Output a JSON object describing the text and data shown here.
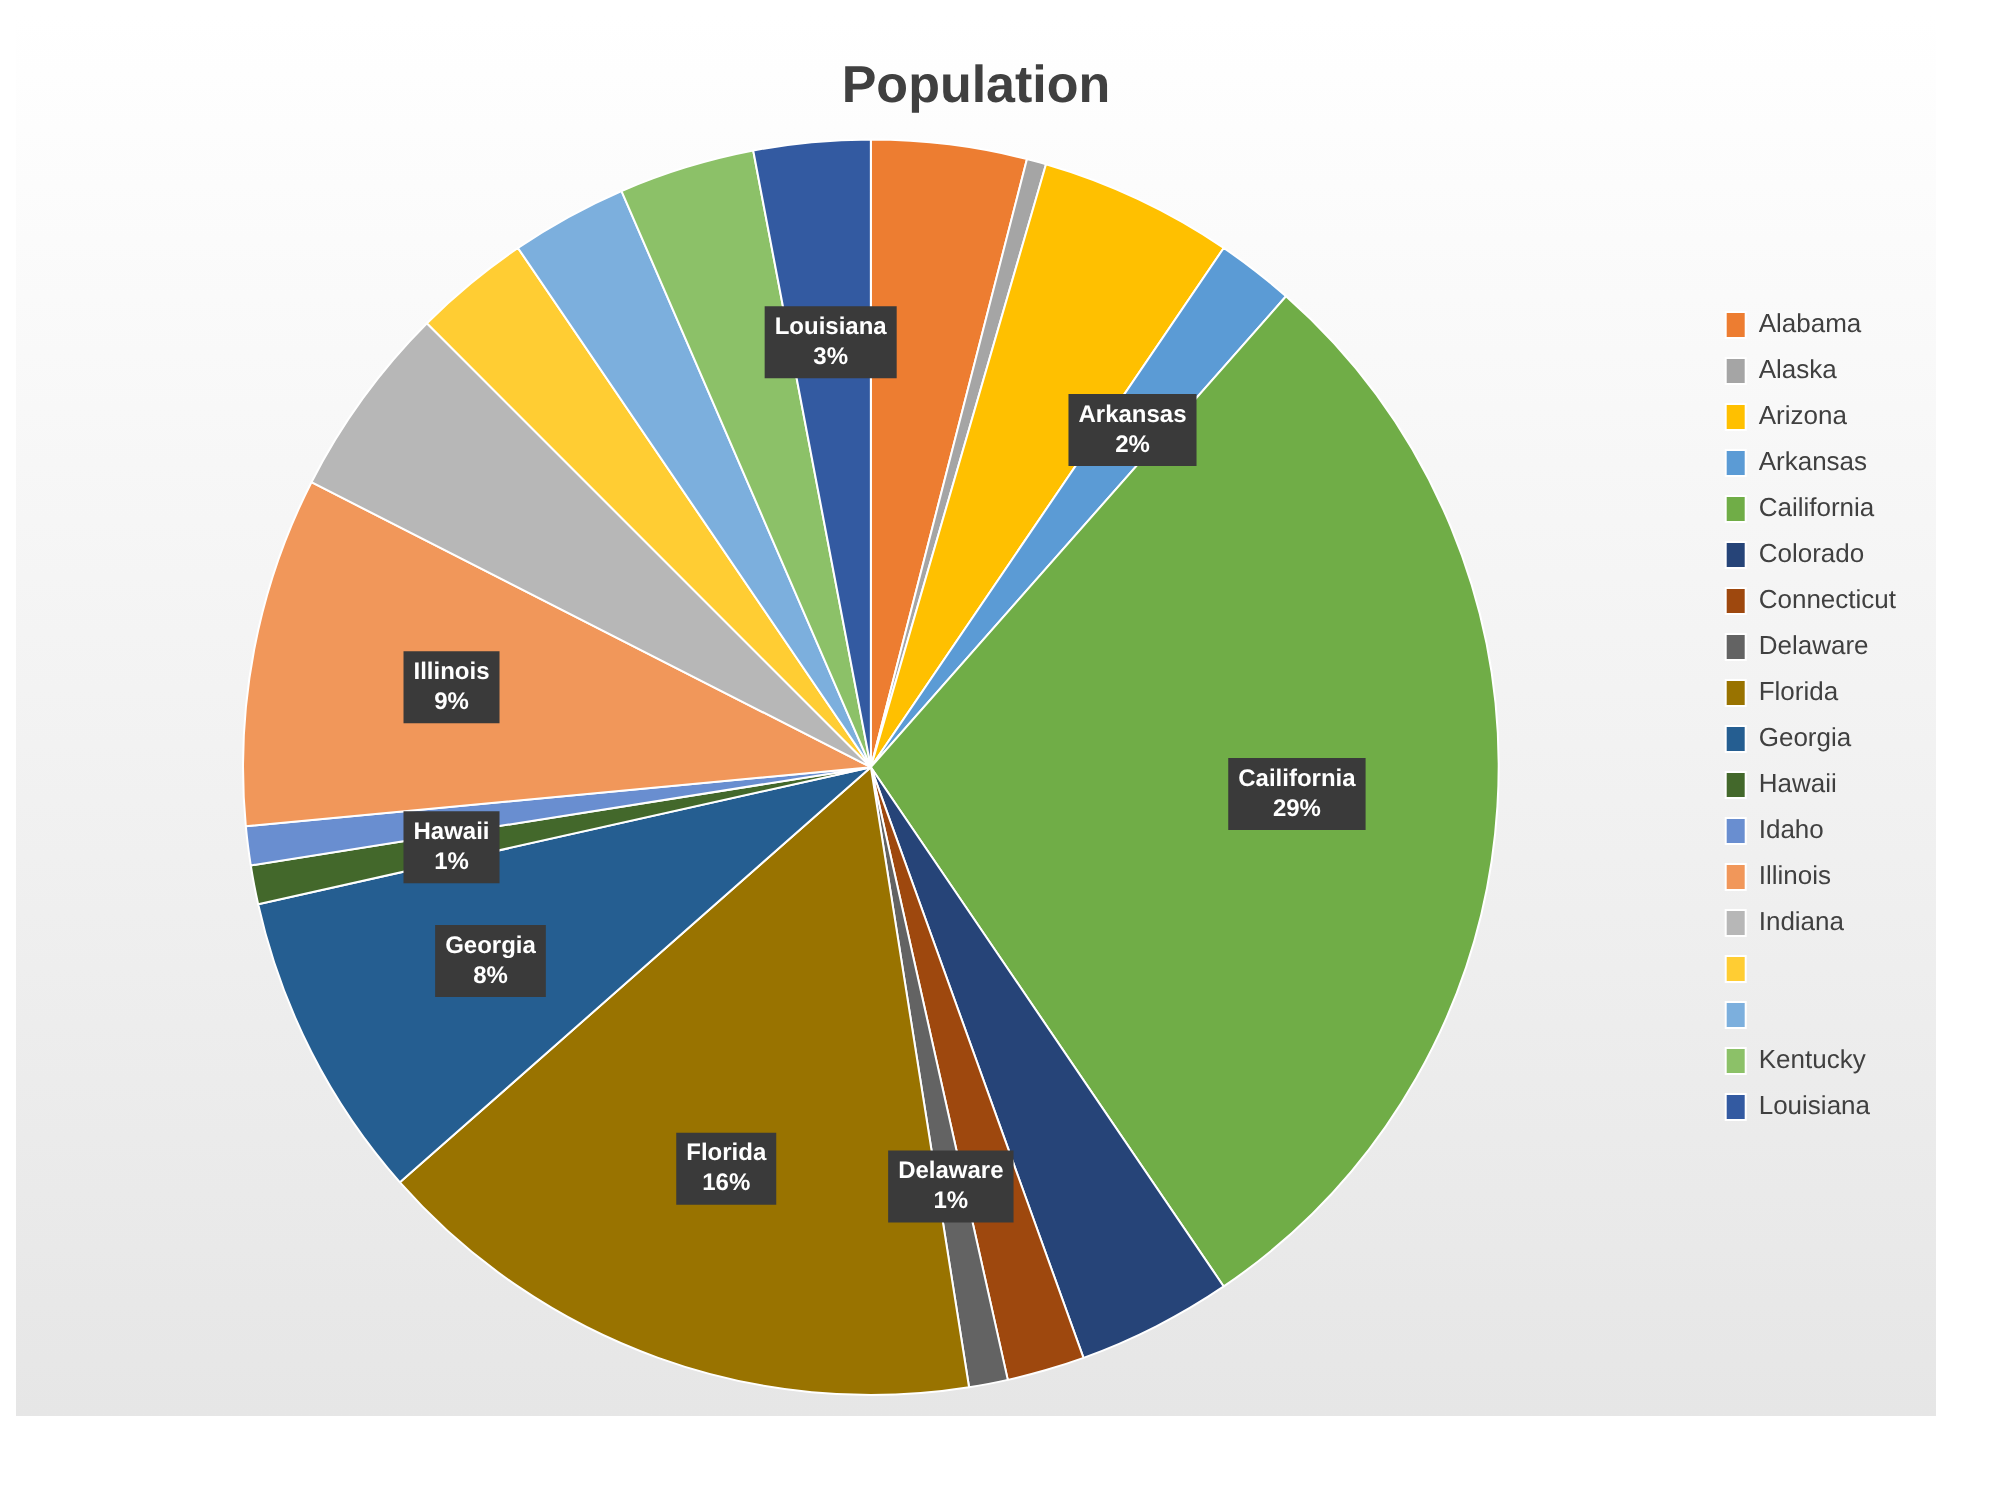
{
  "chart_data": {
    "type": "pie",
    "title": "Population",
    "legend": "right",
    "categories": [
      "Alabama",
      "Alaska",
      "Arizona",
      "Arkansas",
      "Cailifornia",
      "Colorado",
      "Connecticut",
      "Delaware",
      "Florida",
      "Georgia",
      "Hawaii",
      "Idaho",
      "Illinois",
      "Indiana",
      null,
      null,
      "Kentucky",
      "Louisiana"
    ],
    "values": [
      4,
      0.5,
      5,
      2,
      29,
      4,
      2,
      1,
      16,
      8,
      1,
      1,
      9,
      5,
      3,
      3,
      3.5,
      3
    ],
    "value_labels": [
      null,
      null,
      null,
      "2%",
      "29%",
      null,
      null,
      "1%",
      "16%",
      "8%",
      "1%",
      null,
      "9%",
      null,
      null,
      null,
      null,
      "3%"
    ],
    "colors": [
      "#ed7d31",
      "#a5a5a5",
      "#ffc000",
      "#5b9bd5",
      "#70ad47",
      "#264478",
      "#9e480e",
      "#636363",
      "#997300",
      "#255e91",
      "#43682b",
      "#698ed0",
      "#f1975a",
      "#b7b7b7",
      "#ffcd33",
      "#7cafdd",
      "#8cc168",
      "#335aa1"
    ]
  }
}
